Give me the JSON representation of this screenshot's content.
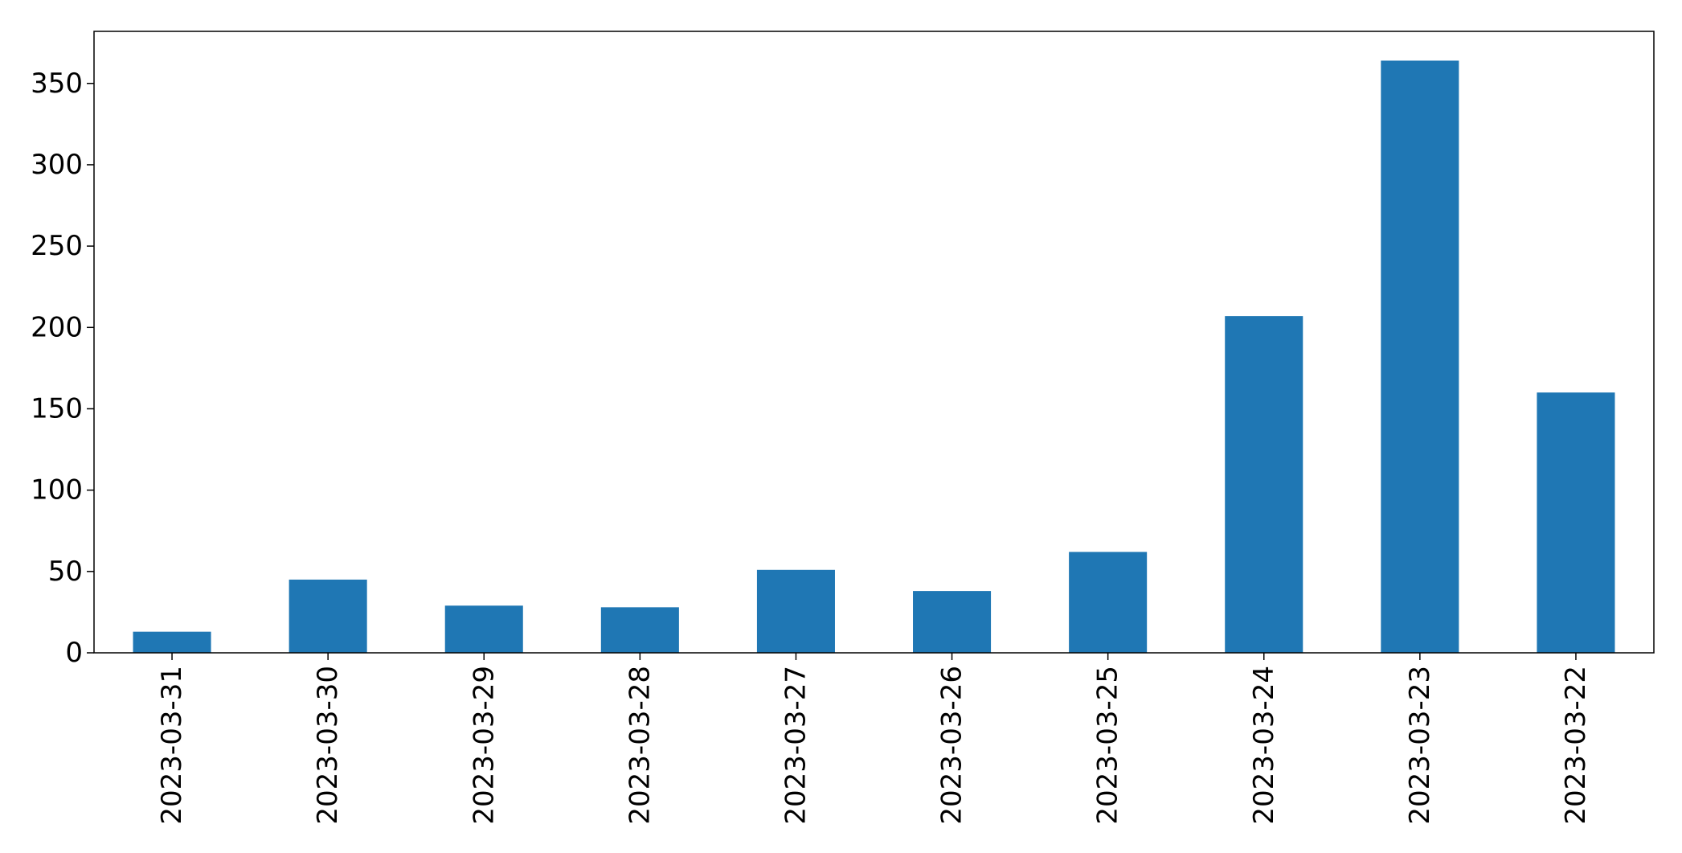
{
  "chart_data": {
    "type": "bar",
    "categories": [
      "2023-03-31",
      "2023-03-30",
      "2023-03-29",
      "2023-03-28",
      "2023-03-27",
      "2023-03-26",
      "2023-03-25",
      "2023-03-24",
      "2023-03-23",
      "2023-03-22"
    ],
    "values": [
      13,
      45,
      29,
      28,
      51,
      38,
      62,
      207,
      364,
      160
    ],
    "title": "",
    "xlabel": "",
    "ylabel": "",
    "ylim": [
      0,
      382
    ],
    "yticks": [
      "0",
      "50",
      "100",
      "150",
      "200",
      "250",
      "300",
      "350"
    ],
    "grid": false,
    "legend": "none",
    "bar_color": "#1f77b4"
  }
}
